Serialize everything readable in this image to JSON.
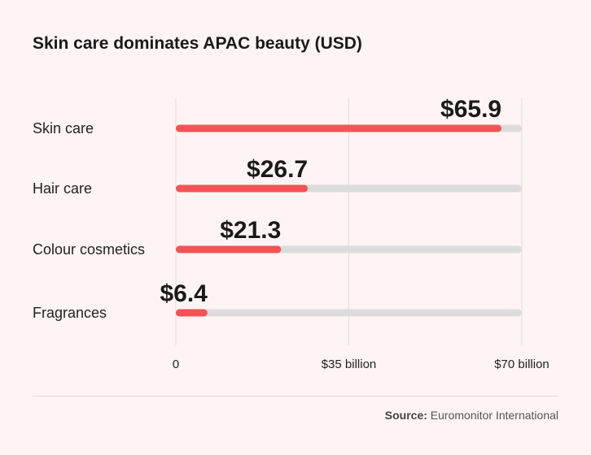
{
  "chart_data": {
    "type": "bar",
    "orientation": "horizontal",
    "title": "Skin care dominates APAC beauty (USD)",
    "categories": [
      "Skin care",
      "Hair care",
      "Colour cosmetics",
      "Fragrances"
    ],
    "values": [
      65.9,
      26.7,
      21.3,
      6.4
    ],
    "value_labels": [
      "$65.9",
      "$26.7",
      "$21.3",
      "$6.4"
    ],
    "xlim": [
      0,
      70
    ],
    "xticks": [
      0,
      35,
      70
    ],
    "xtick_labels": [
      "0",
      "$35 billion",
      "$70 billion"
    ],
    "xlabel": "",
    "ylabel": "",
    "grid": true,
    "colors": {
      "bar": "#f25456",
      "track": "#dcdcdc",
      "grid": "#e2dcdc",
      "text": "#1a1a1a"
    }
  },
  "footer": {
    "source_label": "Source:",
    "source_text": "Euromonitor International"
  }
}
